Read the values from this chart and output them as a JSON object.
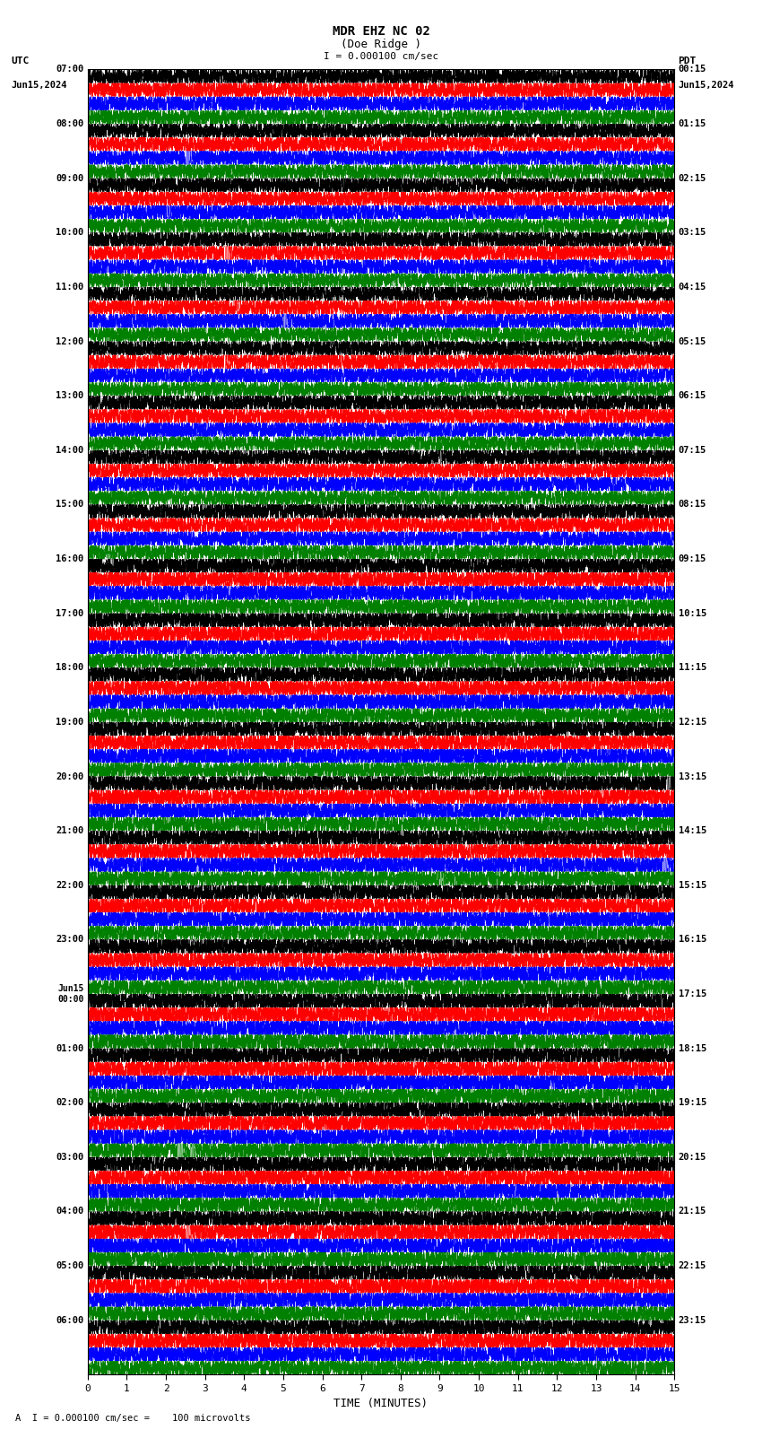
{
  "title_line1": "MDR EHZ NC 02",
  "title_line2": "(Doe Ridge )",
  "scale_text": "I = 0.000100 cm/sec",
  "utc_label": "UTC",
  "pdt_label": "PDT",
  "date_left": "Jun15,2024",
  "date_right": "Jun15,2024",
  "xlabel": "TIME (MINUTES)",
  "footer_text": "A  I = 0.000100 cm/sec =    100 microvolts",
  "utc_times": [
    "07:00",
    "08:00",
    "09:00",
    "10:00",
    "11:00",
    "12:00",
    "13:00",
    "14:00",
    "15:00",
    "16:00",
    "17:00",
    "18:00",
    "19:00",
    "20:00",
    "21:00",
    "22:00",
    "23:00",
    "Jun15\n00:00",
    "01:00",
    "02:00",
    "03:00",
    "04:00",
    "05:00",
    "06:00"
  ],
  "pdt_times": [
    "00:15",
    "01:15",
    "02:15",
    "03:15",
    "04:15",
    "05:15",
    "06:15",
    "07:15",
    "08:15",
    "09:15",
    "10:15",
    "11:15",
    "12:15",
    "13:15",
    "14:15",
    "15:15",
    "16:15",
    "17:15",
    "18:15",
    "19:15",
    "20:15",
    "21:15",
    "22:15",
    "23:15"
  ],
  "num_rows": 24,
  "colors": [
    "black",
    "red",
    "blue",
    "green"
  ],
  "traces_per_row": 4,
  "bg_color": "white",
  "grid_color": "#aaaaaa",
  "xmin": 0,
  "xmax": 15,
  "xticks": [
    0,
    1,
    2,
    3,
    4,
    5,
    6,
    7,
    8,
    9,
    10,
    11,
    12,
    13,
    14,
    15
  ],
  "amplitude_early": 0.38,
  "amplitude_mid": 0.42,
  "amplitude_late": 0.45
}
